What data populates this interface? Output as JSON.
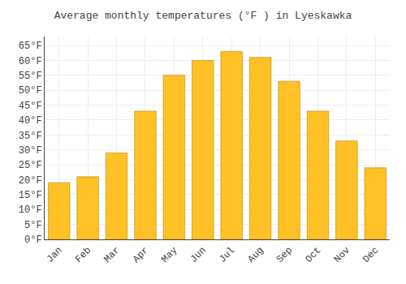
{
  "chart_data": {
    "type": "bar",
    "title": "Average monthly temperatures (°F ) in Lyeskawka",
    "categories": [
      "Jan",
      "Feb",
      "Mar",
      "Apr",
      "May",
      "Jun",
      "Jul",
      "Aug",
      "Sep",
      "Oct",
      "Nov",
      "Dec"
    ],
    "values": [
      19,
      21,
      29,
      43,
      55,
      60,
      63,
      61,
      53,
      43,
      33,
      24
    ],
    "color": "#FFC125",
    "ylim": [
      0,
      68
    ],
    "yticks": [
      {
        "value": 0,
        "label": "0°F"
      },
      {
        "value": 5,
        "label": "5°F"
      },
      {
        "value": 10,
        "label": "10°F"
      },
      {
        "value": 15,
        "label": "15°F"
      },
      {
        "value": 20,
        "label": "20°F"
      },
      {
        "value": 25,
        "label": "25°F"
      },
      {
        "value": 30,
        "label": "30°F"
      },
      {
        "value": 35,
        "label": "35°F"
      },
      {
        "value": 40,
        "label": "40°F"
      },
      {
        "value": 45,
        "label": "45°F"
      },
      {
        "value": 50,
        "label": "50°F"
      },
      {
        "value": 55,
        "label": "55°F"
      },
      {
        "value": 60,
        "label": "60°F"
      },
      {
        "value": 65,
        "label": "65°F"
      }
    ],
    "grid": true
  }
}
